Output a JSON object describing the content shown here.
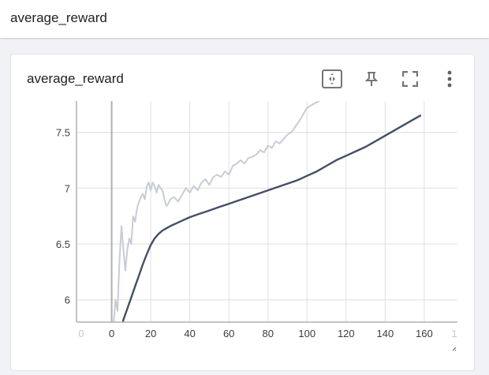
{
  "header": {
    "title": "average_reward"
  },
  "card": {
    "title": "average_reward",
    "tools": [
      {
        "name": "fit-domain-button",
        "icon": "fit-domain-icon"
      },
      {
        "name": "pin-button",
        "icon": "pin-icon"
      },
      {
        "name": "fullscreen-button",
        "icon": "fullscreen-icon"
      },
      {
        "name": "more-options-button",
        "icon": "more-vert-icon"
      }
    ]
  },
  "chart_data": {
    "type": "line",
    "xlabel": "",
    "ylabel": "",
    "xlim": [
      -18,
      177
    ],
    "ylim": [
      5.8,
      7.78
    ],
    "x_ticks": [
      0,
      20,
      40,
      60,
      80,
      100,
      120,
      140,
      160
    ],
    "x_tick_labels": [
      "0",
      "20",
      "40",
      "60",
      "80",
      "100",
      "120",
      "140",
      "160"
    ],
    "x_faint_ticks": [
      -18,
      177
    ],
    "x_faint_tick_labels": [
      "0",
      "1"
    ],
    "y_ticks": [
      6,
      6.5,
      7,
      7.5
    ],
    "y_tick_labels": [
      "6",
      "6.5",
      "7",
      "7.5"
    ],
    "grid": true,
    "colors": {
      "smoothed": "#425066",
      "raw": "#c8ccd6",
      "grid": "#e0e0e0",
      "axis": "#b0b0b0"
    },
    "series": [
      {
        "role": "raw",
        "x": [
          1,
          2,
          3,
          4,
          5,
          6,
          7,
          8,
          9,
          10,
          11,
          12,
          13,
          14,
          15,
          16,
          17,
          18,
          19,
          20,
          21,
          22,
          23,
          24,
          25,
          26,
          27,
          28,
          29,
          30,
          32,
          34,
          36,
          38,
          40,
          42,
          44,
          46,
          48,
          50,
          52,
          54,
          56,
          58,
          60,
          62,
          64,
          66,
          68,
          70,
          72,
          74,
          76,
          78,
          80,
          82,
          84,
          86,
          88,
          90,
          92,
          94,
          96,
          98,
          100,
          102,
          104,
          106,
          108,
          110,
          112,
          114
        ],
        "y": [
          5.8,
          6.0,
          5.9,
          6.35,
          6.66,
          6.45,
          6.26,
          6.45,
          6.55,
          6.5,
          6.75,
          6.7,
          6.82,
          6.88,
          6.92,
          6.95,
          6.9,
          7.02,
          7.05,
          6.98,
          7.05,
          7.02,
          6.96,
          7.03,
          7.0,
          6.98,
          6.9,
          6.84,
          6.86,
          6.9,
          6.92,
          6.88,
          6.94,
          7.0,
          6.96,
          7.02,
          6.98,
          7.05,
          7.08,
          7.03,
          7.1,
          7.12,
          7.1,
          7.15,
          7.12,
          7.2,
          7.22,
          7.25,
          7.22,
          7.27,
          7.28,
          7.3,
          7.34,
          7.32,
          7.38,
          7.36,
          7.42,
          7.4,
          7.44,
          7.48,
          7.5,
          7.55,
          7.6,
          7.66,
          7.72,
          7.74,
          7.76,
          7.78,
          7.8,
          7.84,
          7.86,
          7.9
        ]
      },
      {
        "role": "smoothed",
        "x": [
          4,
          5,
          6,
          8,
          10,
          12,
          14,
          16,
          18,
          20,
          22,
          24,
          26,
          28,
          30,
          35,
          40,
          45,
          50,
          55,
          60,
          65,
          70,
          75,
          80,
          85,
          90,
          95,
          100,
          105,
          110,
          115,
          120,
          125,
          130,
          135,
          140,
          145,
          150,
          155,
          158
        ],
        "y": [
          5.7,
          5.76,
          5.82,
          5.92,
          6.02,
          6.12,
          6.22,
          6.32,
          6.41,
          6.49,
          6.55,
          6.59,
          6.62,
          6.64,
          6.66,
          6.7,
          6.74,
          6.77,
          6.8,
          6.83,
          6.86,
          6.89,
          6.92,
          6.95,
          6.98,
          7.01,
          7.04,
          7.07,
          7.11,
          7.15,
          7.2,
          7.25,
          7.29,
          7.33,
          7.37,
          7.42,
          7.47,
          7.52,
          7.57,
          7.62,
          7.65
        ]
      }
    ]
  }
}
